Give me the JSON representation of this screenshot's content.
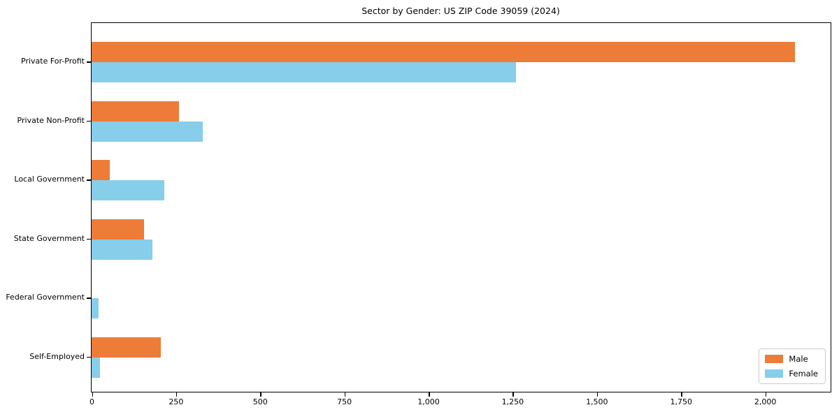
{
  "chart_data": {
    "type": "bar",
    "orientation": "horizontal",
    "title": "Sector by Gender: US ZIP Code 39059 (2024)",
    "categories": [
      "Private For-Profit",
      "Private Non-Profit",
      "Local Government",
      "State Government",
      "Federal Government",
      "Self-Employed"
    ],
    "series": [
      {
        "name": "Male",
        "color": "#ED7C39",
        "values": [
          2090,
          260,
          55,
          155,
          0,
          205
        ]
      },
      {
        "name": "Female",
        "color": "#87CEEB",
        "values": [
          1260,
          330,
          215,
          180,
          20,
          25
        ]
      }
    ],
    "xlabel": "",
    "ylabel": "",
    "xlim": [
      0,
      2195
    ],
    "x_ticks": [
      0,
      250,
      500,
      750,
      1000,
      1250,
      1500,
      1750,
      2000
    ],
    "x_tick_labels": [
      "0",
      "250",
      "500",
      "750",
      "1,000",
      "1,250",
      "1,500",
      "1,750",
      "2,000"
    ],
    "grid": false,
    "legend_position": "lower right"
  }
}
